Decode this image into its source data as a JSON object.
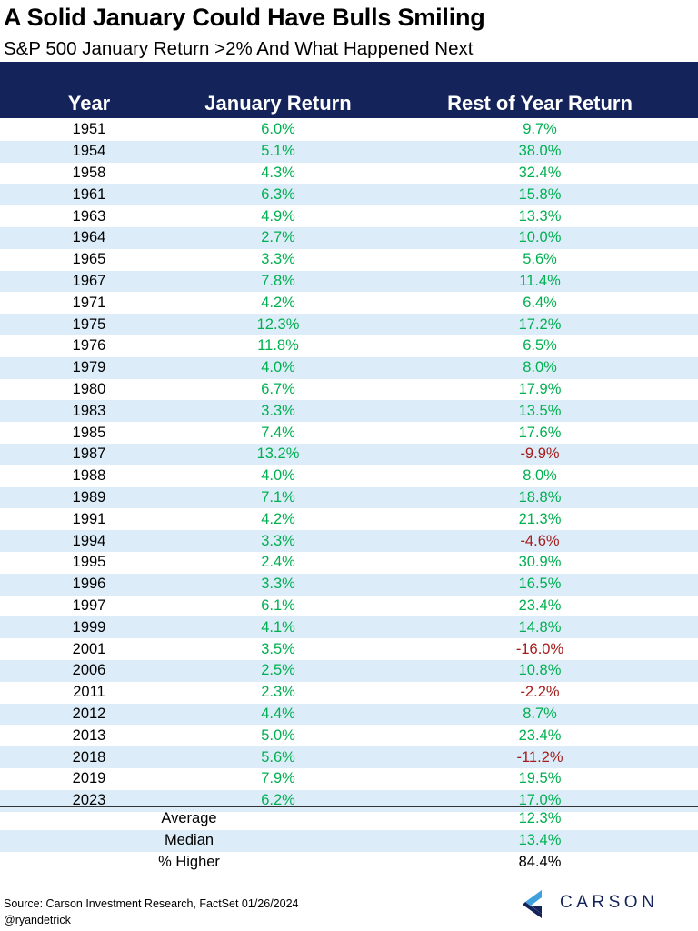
{
  "colors": {
    "header_bg": "#14245a",
    "alt_row_bg": "#dcedf9",
    "positive": "#00b050",
    "negative": "#a61c1c",
    "logo_dark": "#14245a",
    "logo_light": "#3ea0dc"
  },
  "chart_data": {
    "type": "table",
    "title": "A Solid January Could Have Bulls Smiling",
    "subtitle": "S&P 500 January Return >2% And What Happened Next",
    "columns": [
      "Year",
      "January Return",
      "Rest of Year Return"
    ],
    "rows": [
      {
        "year": "1951",
        "jan": "6.0%",
        "rest": "9.7%"
      },
      {
        "year": "1954",
        "jan": "5.1%",
        "rest": "38.0%"
      },
      {
        "year": "1958",
        "jan": "4.3%",
        "rest": "32.4%"
      },
      {
        "year": "1961",
        "jan": "6.3%",
        "rest": "15.8%"
      },
      {
        "year": "1963",
        "jan": "4.9%",
        "rest": "13.3%"
      },
      {
        "year": "1964",
        "jan": "2.7%",
        "rest": "10.0%"
      },
      {
        "year": "1965",
        "jan": "3.3%",
        "rest": "5.6%"
      },
      {
        "year": "1967",
        "jan": "7.8%",
        "rest": "11.4%"
      },
      {
        "year": "1971",
        "jan": "4.2%",
        "rest": "6.4%"
      },
      {
        "year": "1975",
        "jan": "12.3%",
        "rest": "17.2%"
      },
      {
        "year": "1976",
        "jan": "11.8%",
        "rest": "6.5%"
      },
      {
        "year": "1979",
        "jan": "4.0%",
        "rest": "8.0%"
      },
      {
        "year": "1980",
        "jan": "6.7%",
        "rest": "17.9%"
      },
      {
        "year": "1983",
        "jan": "3.3%",
        "rest": "13.5%"
      },
      {
        "year": "1985",
        "jan": "7.4%",
        "rest": "17.6%"
      },
      {
        "year": "1987",
        "jan": "13.2%",
        "rest": "-9.9%"
      },
      {
        "year": "1988",
        "jan": "4.0%",
        "rest": "8.0%"
      },
      {
        "year": "1989",
        "jan": "7.1%",
        "rest": "18.8%"
      },
      {
        "year": "1991",
        "jan": "4.2%",
        "rest": "21.3%"
      },
      {
        "year": "1994",
        "jan": "3.3%",
        "rest": "-4.6%"
      },
      {
        "year": "1995",
        "jan": "2.4%",
        "rest": "30.9%"
      },
      {
        "year": "1996",
        "jan": "3.3%",
        "rest": "16.5%"
      },
      {
        "year": "1997",
        "jan": "6.1%",
        "rest": "23.4%"
      },
      {
        "year": "1999",
        "jan": "4.1%",
        "rest": "14.8%"
      },
      {
        "year": "2001",
        "jan": "3.5%",
        "rest": "-16.0%"
      },
      {
        "year": "2006",
        "jan": "2.5%",
        "rest": "10.8%"
      },
      {
        "year": "2011",
        "jan": "2.3%",
        "rest": "-2.2%"
      },
      {
        "year": "2012",
        "jan": "4.4%",
        "rest": "8.7%"
      },
      {
        "year": "2013",
        "jan": "5.0%",
        "rest": "23.4%"
      },
      {
        "year": "2018",
        "jan": "5.6%",
        "rest": "-11.2%"
      },
      {
        "year": "2019",
        "jan": "7.9%",
        "rest": "19.5%"
      },
      {
        "year": "2023",
        "jan": "6.2%",
        "rest": "17.0%"
      }
    ],
    "summary": [
      {
        "label": "Average",
        "value": "12.3%",
        "color": "positive"
      },
      {
        "label": "Median",
        "value": "13.4%",
        "color": "positive"
      },
      {
        "label": "% Higher",
        "value": "84.4%",
        "color": "neutral"
      }
    ]
  },
  "footer": {
    "source": "Source: Carson Investment Research, FactSet 01/26/2024",
    "handle": "@ryandetrick",
    "logo_text": "CARSON",
    "logo_icon": "carson-chevron-logo-icon"
  }
}
